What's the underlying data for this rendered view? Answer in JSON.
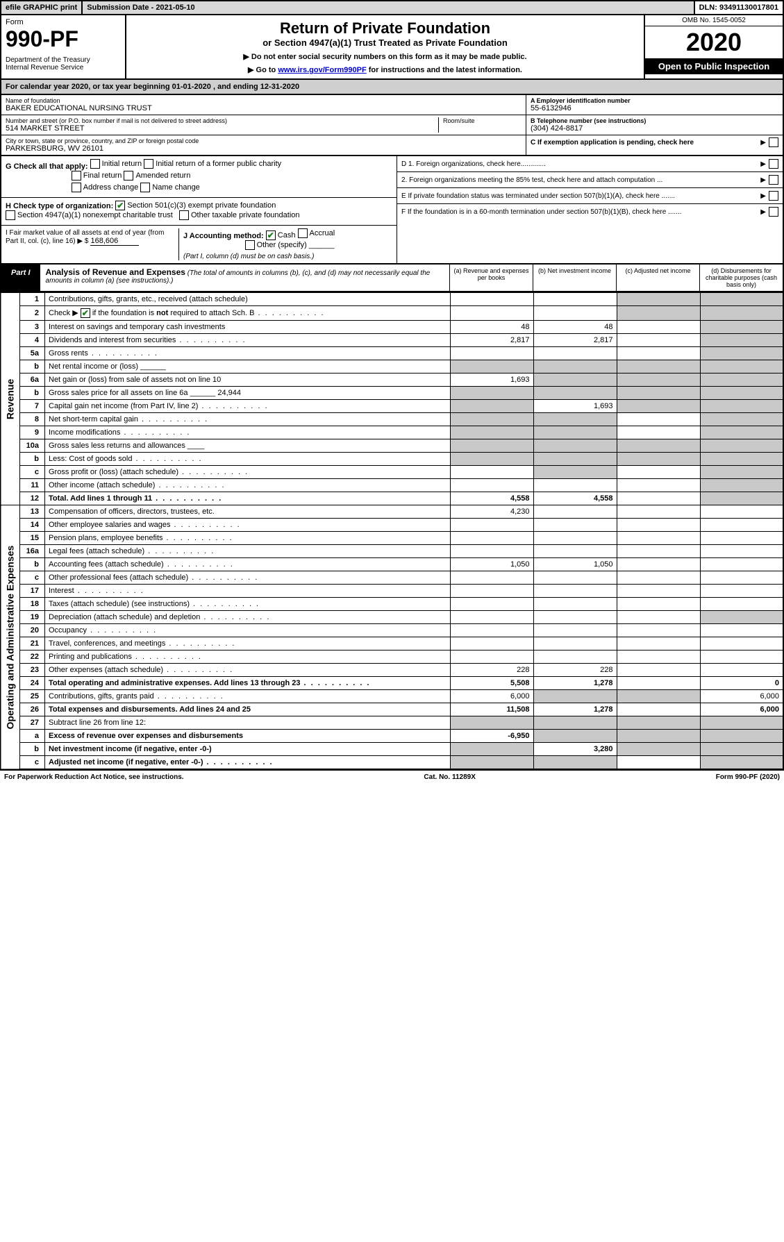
{
  "topbar": {
    "efile": "efile GRAPHIC print",
    "submission": "Submission Date - 2021-05-10",
    "dln": "DLN: 93491130017801"
  },
  "header": {
    "form_label": "Form",
    "form_num": "990-PF",
    "dept": "Department of the Treasury\nInternal Revenue Service",
    "title": "Return of Private Foundation",
    "subtitle": "or Section 4947(a)(1) Trust Treated as Private Foundation",
    "note1": "▶ Do not enter social security numbers on this form as it may be made public.",
    "note2_pre": "▶ Go to ",
    "note2_link": "www.irs.gov/Form990PF",
    "note2_post": " for instructions and the latest information.",
    "omb": "OMB No. 1545-0052",
    "year": "2020",
    "open": "Open to Public Inspection"
  },
  "calendar": "For calendar year 2020, or tax year beginning 01-01-2020           , and ending 12-31-2020",
  "foundation": {
    "name_lbl": "Name of foundation",
    "name": "BAKER EDUCATIONAL NURSING TRUST",
    "addr_lbl": "Number and street (or P.O. box number if mail is not delivered to street address)",
    "addr": "514 MARKET STREET",
    "room_lbl": "Room/suite",
    "city_lbl": "City or town, state or province, country, and ZIP or foreign postal code",
    "city": "PARKERSBURG, WV  26101",
    "ein_lbl": "A Employer identification number",
    "ein": "55-6132946",
    "phone_lbl": "B Telephone number (see instructions)",
    "phone": "(304) 424-8817",
    "c_lbl": "C If exemption application is pending, check here"
  },
  "g": {
    "label": "G Check all that apply:",
    "opts": [
      "Initial return",
      "Initial return of a former public charity",
      "Final return",
      "Amended return",
      "Address change",
      "Name change"
    ]
  },
  "h": {
    "label": "H Check type of organization:",
    "opt1": "Section 501(c)(3) exempt private foundation",
    "opt2": "Section 4947(a)(1) nonexempt charitable trust",
    "opt3": "Other taxable private foundation"
  },
  "i": {
    "label": "I Fair market value of all assets at end of year (from Part II, col. (c), line 16) ▶ $",
    "val": "168,606"
  },
  "j": {
    "label": "J Accounting method:",
    "cash": "Cash",
    "accrual": "Accrual",
    "other": "Other (specify)",
    "note": "(Part I, column (d) must be on cash basis.)"
  },
  "d": {
    "d1": "D 1. Foreign organizations, check here.............",
    "d2": "2. Foreign organizations meeting the 85% test, check here and attach computation ...",
    "e": "E  If private foundation status was terminated under section 507(b)(1)(A), check here .......",
    "f": "F  If the foundation is in a 60-month termination under section 507(b)(1)(B), check here ......."
  },
  "part1": {
    "tag": "Part I",
    "title": "Analysis of Revenue and Expenses",
    "desc": "(The total of amounts in columns (b), (c), and (d) may not necessarily equal the amounts in column (a) (see instructions).)",
    "cols": {
      "a": "(a)   Revenue and expenses per books",
      "b": "(b)  Net investment income",
      "c": "(c)  Adjusted net income",
      "d": "(d)  Disbursements for charitable purposes (cash basis only)"
    }
  },
  "rows": [
    {
      "n": "1",
      "d": "Contributions, gifts, grants, etc., received (attach schedule)",
      "a": "",
      "b": "",
      "c": "g",
      "dd": "g"
    },
    {
      "n": "2",
      "d": "Check ▶ ✔ if the foundation is not required to attach Sch. B",
      "dots": true,
      "a": "",
      "b": "",
      "c": "g",
      "dd": "g",
      "checked": true
    },
    {
      "n": "3",
      "d": "Interest on savings and temporary cash investments",
      "a": "48",
      "b": "48",
      "c": "",
      "dd": "g"
    },
    {
      "n": "4",
      "d": "Dividends and interest from securities",
      "dots": true,
      "a": "2,817",
      "b": "2,817",
      "c": "",
      "dd": "g"
    },
    {
      "n": "5a",
      "d": "Gross rents",
      "dots": true,
      "a": "",
      "b": "",
      "c": "",
      "dd": "g"
    },
    {
      "n": "b",
      "d": "Net rental income or (loss)  ______",
      "a": "g",
      "b": "g",
      "c": "g",
      "dd": "g"
    },
    {
      "n": "6a",
      "d": "Net gain or (loss) from sale of assets not on line 10",
      "a": "1,693",
      "b": "g",
      "c": "g",
      "dd": "g"
    },
    {
      "n": "b",
      "d": "Gross sales price for all assets on line 6a ______ 24,944",
      "a": "g",
      "b": "g",
      "c": "g",
      "dd": "g"
    },
    {
      "n": "7",
      "d": "Capital gain net income (from Part IV, line 2)",
      "dots": true,
      "a": "g",
      "b": "1,693",
      "c": "g",
      "dd": "g"
    },
    {
      "n": "8",
      "d": "Net short-term capital gain",
      "dots": true,
      "a": "g",
      "b": "g",
      "c": "",
      "dd": "g"
    },
    {
      "n": "9",
      "d": "Income modifications",
      "dots": true,
      "a": "g",
      "b": "g",
      "c": "",
      "dd": "g"
    },
    {
      "n": "10a",
      "d": "Gross sales less returns and allowances  ____",
      "a": "g",
      "b": "g",
      "c": "g",
      "dd": "g"
    },
    {
      "n": "b",
      "d": "Less: Cost of goods sold",
      "dots": true,
      "a": "g",
      "b": "g",
      "c": "g",
      "dd": "g"
    },
    {
      "n": "c",
      "d": "Gross profit or (loss) (attach schedule)",
      "dots": true,
      "a": "",
      "b": "g",
      "c": "",
      "dd": "g"
    },
    {
      "n": "11",
      "d": "Other income (attach schedule)",
      "dots": true,
      "a": "",
      "b": "",
      "c": "",
      "dd": "g"
    },
    {
      "n": "12",
      "d": "Total. Add lines 1 through 11",
      "dots": true,
      "a": "4,558",
      "b": "4,558",
      "c": "",
      "dd": "g",
      "bold": true
    }
  ],
  "exp_rows": [
    {
      "n": "13",
      "d": "Compensation of officers, directors, trustees, etc.",
      "a": "4,230",
      "b": "",
      "c": "",
      "dd": ""
    },
    {
      "n": "14",
      "d": "Other employee salaries and wages",
      "dots": true,
      "a": "",
      "b": "",
      "c": "",
      "dd": ""
    },
    {
      "n": "15",
      "d": "Pension plans, employee benefits",
      "dots": true,
      "a": "",
      "b": "",
      "c": "",
      "dd": ""
    },
    {
      "n": "16a",
      "d": "Legal fees (attach schedule)",
      "dots": true,
      "a": "",
      "b": "",
      "c": "",
      "dd": ""
    },
    {
      "n": "b",
      "d": "Accounting fees (attach schedule)",
      "dots": true,
      "a": "1,050",
      "b": "1,050",
      "c": "",
      "dd": ""
    },
    {
      "n": "c",
      "d": "Other professional fees (attach schedule)",
      "dots": true,
      "a": "",
      "b": "",
      "c": "",
      "dd": ""
    },
    {
      "n": "17",
      "d": "Interest",
      "dots": true,
      "a": "",
      "b": "",
      "c": "",
      "dd": ""
    },
    {
      "n": "18",
      "d": "Taxes (attach schedule) (see instructions)",
      "dots": true,
      "a": "",
      "b": "",
      "c": "",
      "dd": ""
    },
    {
      "n": "19",
      "d": "Depreciation (attach schedule) and depletion",
      "dots": true,
      "a": "",
      "b": "",
      "c": "",
      "dd": "g"
    },
    {
      "n": "20",
      "d": "Occupancy",
      "dots": true,
      "a": "",
      "b": "",
      "c": "",
      "dd": ""
    },
    {
      "n": "21",
      "d": "Travel, conferences, and meetings",
      "dots": true,
      "a": "",
      "b": "",
      "c": "",
      "dd": ""
    },
    {
      "n": "22",
      "d": "Printing and publications",
      "dots": true,
      "a": "",
      "b": "",
      "c": "",
      "dd": ""
    },
    {
      "n": "23",
      "d": "Other expenses (attach schedule)",
      "dots": true,
      "a": "228",
      "b": "228",
      "c": "",
      "dd": ""
    },
    {
      "n": "24",
      "d": "Total operating and administrative expenses. Add lines 13 through 23",
      "dots": true,
      "a": "5,508",
      "b": "1,278",
      "c": "",
      "dd": "0",
      "bold": true
    },
    {
      "n": "25",
      "d": "Contributions, gifts, grants paid",
      "dots": true,
      "a": "6,000",
      "b": "g",
      "c": "g",
      "dd": "6,000"
    },
    {
      "n": "26",
      "d": "Total expenses and disbursements. Add lines 24 and 25",
      "a": "11,508",
      "b": "1,278",
      "c": "",
      "dd": "6,000",
      "bold": true
    },
    {
      "n": "27",
      "d": "Subtract line 26 from line 12:",
      "a": "g",
      "b": "g",
      "c": "g",
      "dd": "g"
    },
    {
      "n": "a",
      "d": "Excess of revenue over expenses and disbursements",
      "a": "-6,950",
      "b": "g",
      "c": "g",
      "dd": "g",
      "bold": true
    },
    {
      "n": "b",
      "d": "Net investment income (if negative, enter -0-)",
      "a": "g",
      "b": "3,280",
      "c": "g",
      "dd": "g",
      "bold": true
    },
    {
      "n": "c",
      "d": "Adjusted net income (if negative, enter -0-)",
      "dots": true,
      "a": "g",
      "b": "g",
      "c": "",
      "dd": "g",
      "bold": true
    }
  ],
  "sections": {
    "rev": "Revenue",
    "exp": "Operating and Administrative Expenses"
  },
  "footer": {
    "left": "For Paperwork Reduction Act Notice, see instructions.",
    "center": "Cat. No. 11289X",
    "right": "Form 990-PF (2020)"
  }
}
